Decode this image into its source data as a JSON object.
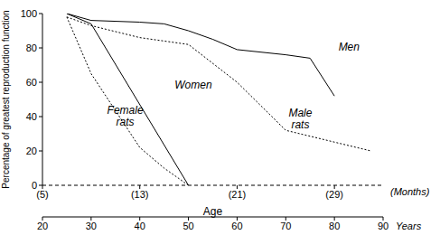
{
  "chart_data": {
    "type": "line",
    "xlabel": "Age",
    "x_unit_label": "Years",
    "x2_unit_label": "(Months)",
    "ylabel": "Percentage of greatest reproduction function",
    "xlim": [
      20,
      90
    ],
    "xticks": [
      20,
      30,
      40,
      50,
      60,
      70,
      80,
      90
    ],
    "x2lim": [
      5,
      33
    ],
    "x2ticks": [
      {
        "value": 5,
        "label": "(5)"
      },
      {
        "value": 13,
        "label": "(13)"
      },
      {
        "value": 21,
        "label": "(21)"
      },
      {
        "value": 29,
        "label": "(29)"
      }
    ],
    "ylim": [
      0,
      100
    ],
    "yticks": [
      0,
      20,
      40,
      60,
      80,
      100
    ],
    "grid": false,
    "series": [
      {
        "name": "Men",
        "color": "#000000",
        "line_style": "solid",
        "x": [
          25,
          30,
          40,
          45,
          50,
          55,
          60,
          70,
          75,
          80
        ],
        "values": [
          100,
          96,
          95,
          94,
          90,
          85,
          79,
          76,
          74,
          52
        ]
      },
      {
        "name": "Women",
        "color": "#000000",
        "line_style": "solid",
        "x": [
          25,
          30,
          50
        ],
        "values": [
          100,
          94,
          0
        ]
      },
      {
        "name": "Female rats",
        "color": "#000000",
        "line_style": "dotted",
        "axis": "x2",
        "x": [
          7,
          9,
          13,
          15,
          17
        ],
        "values": [
          98,
          65,
          22,
          10,
          0
        ]
      },
      {
        "name": "Male rats",
        "color": "#000000",
        "line_style": "dotted",
        "axis": "x2",
        "x": [
          7,
          9,
          13,
          17,
          21,
          25,
          32
        ],
        "values": [
          98,
          93,
          86,
          82,
          60,
          32,
          20
        ]
      }
    ],
    "annotations": [
      {
        "text": "Men",
        "x": 83,
        "y": 80
      },
      {
        "text": "Women",
        "x": 51,
        "y": 58
      },
      {
        "text": "Female rats",
        "x": 37,
        "y": 40
      },
      {
        "text": "Male rats",
        "x": 73,
        "y": 38
      }
    ]
  }
}
